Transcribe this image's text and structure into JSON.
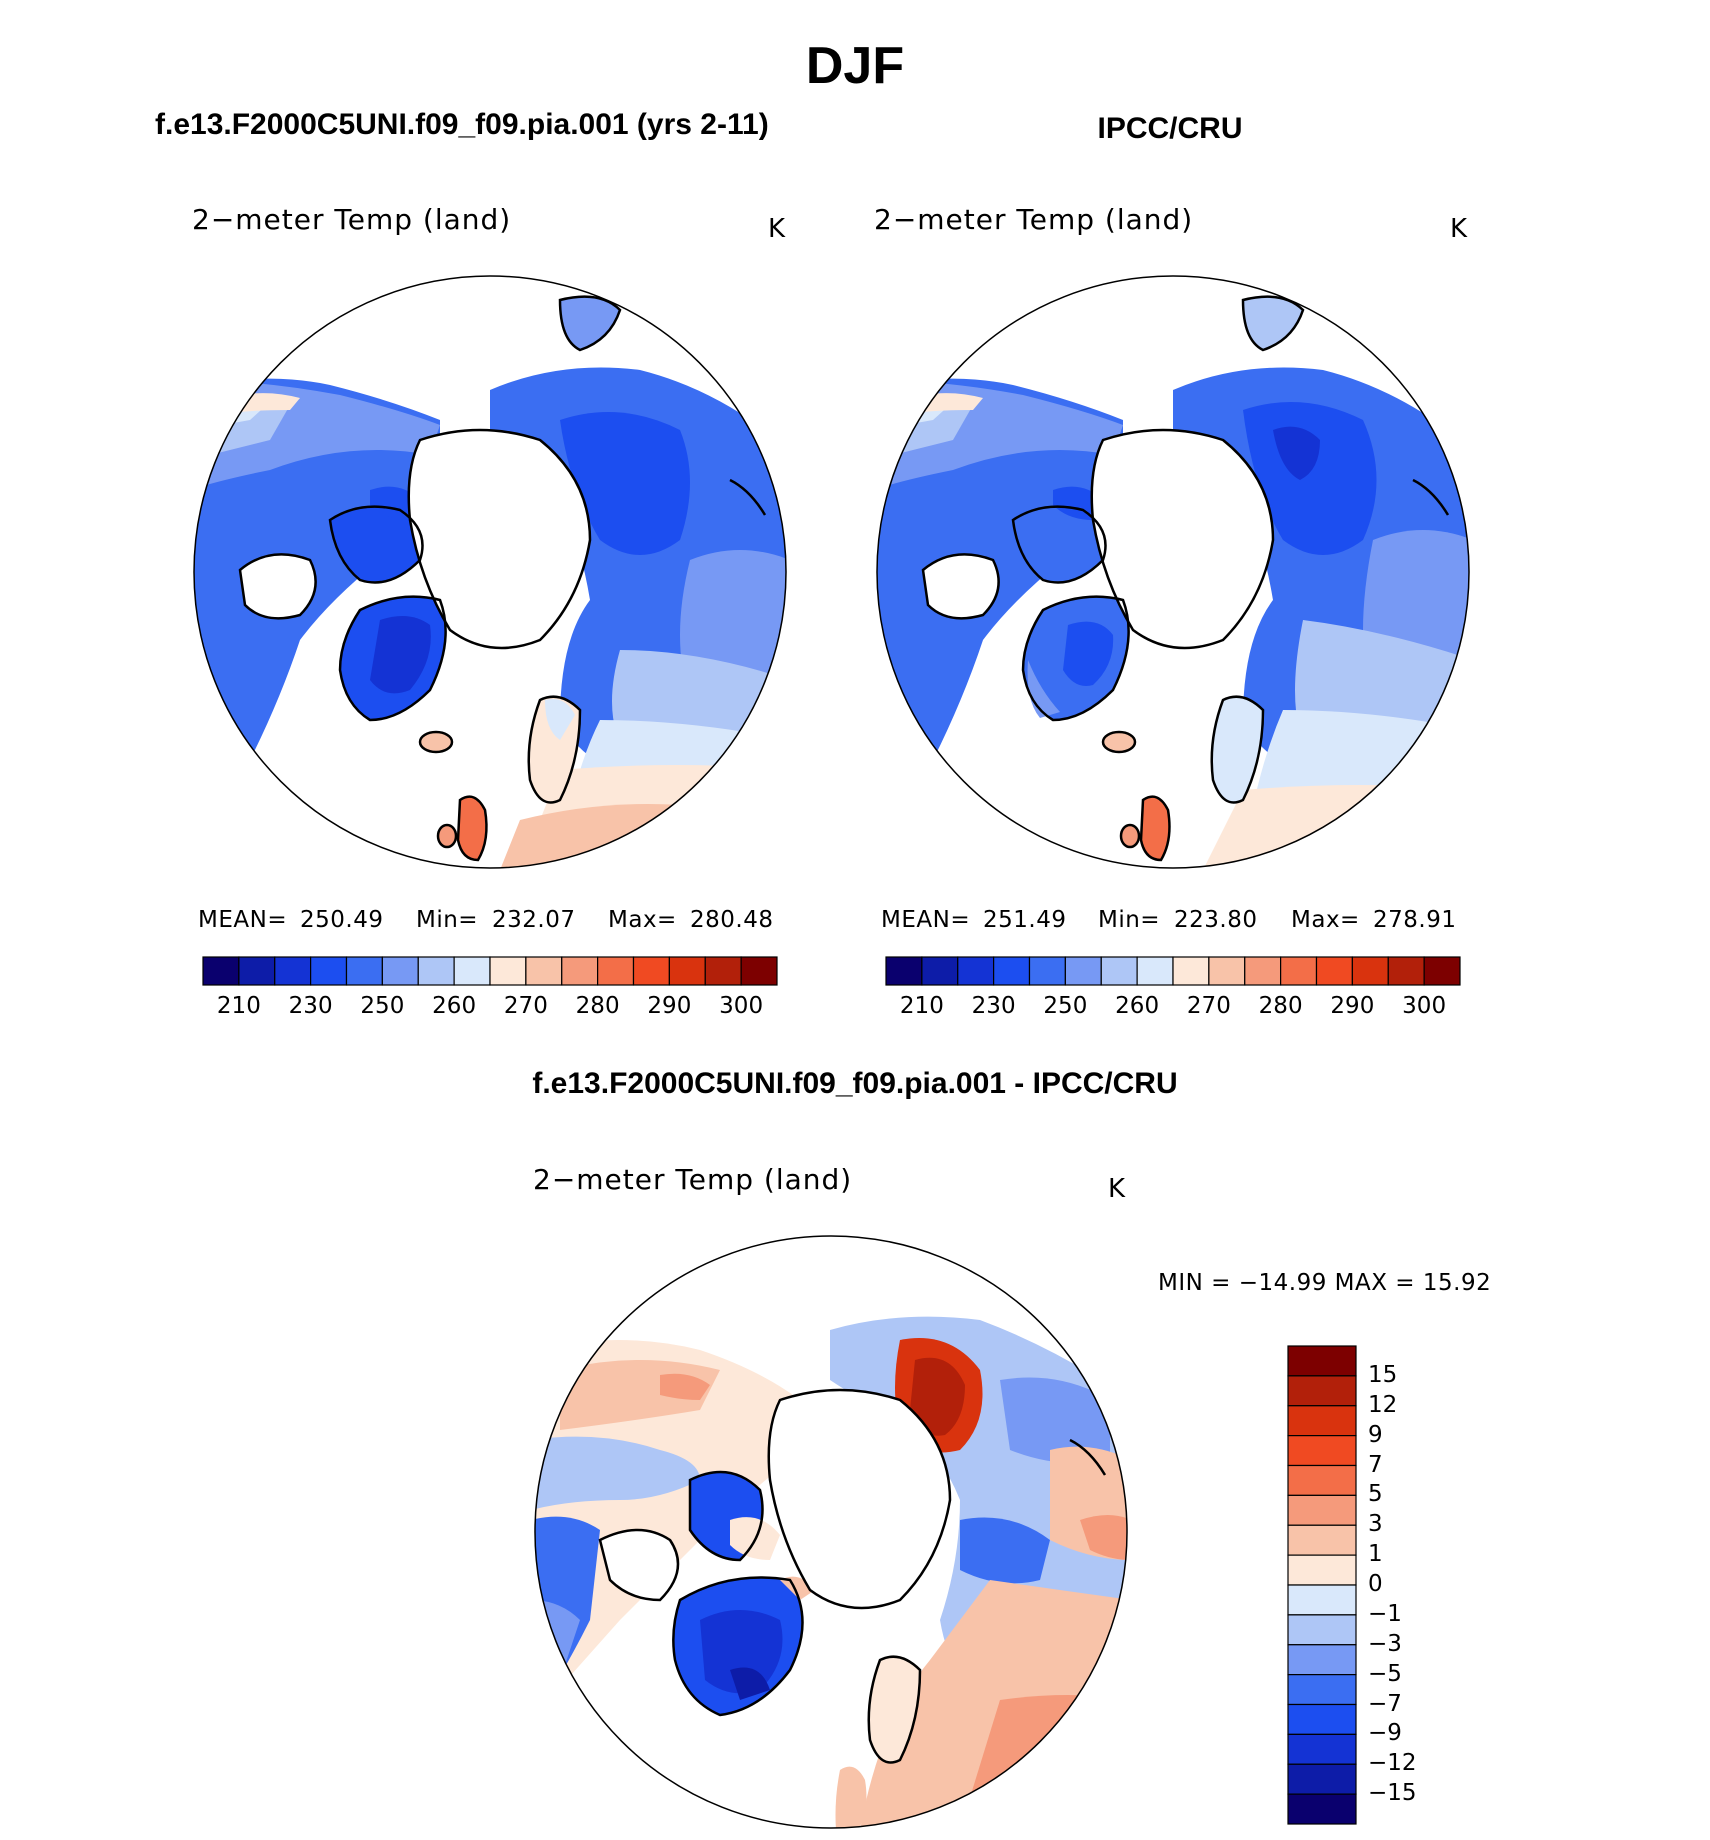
{
  "title": "DJF",
  "panels": [
    {
      "id": "model",
      "header": "f.e13.F2000C5UNI.f09_f09.pia.001 (yrs 2-11)",
      "variable": "2−meter Temp (land)",
      "units": "K",
      "stats": {
        "mean_label": "MEAN=",
        "mean": "250.49",
        "min_label": "Min=",
        "min": "232.07",
        "max_label": "Max=",
        "max": "280.48"
      }
    },
    {
      "id": "obs",
      "header": "IPCC/CRU",
      "variable": "2−meter Temp (land)",
      "units": "K",
      "stats": {
        "mean_label": "MEAN=",
        "mean": "251.49",
        "min_label": "Min=",
        "min": "223.80",
        "max_label": "Max=",
        "max": "278.91"
      }
    }
  ],
  "diff_panel": {
    "header": "f.e13.F2000C5UNI.f09_f09.pia.001 - IPCC/CRU",
    "variable": "2−meter Temp (land)",
    "units": "K",
    "stats_text": "MIN = −14.99 MAX =  15.92"
  },
  "colorbar_abs": {
    "colors": [
      "#0a006e",
      "#0d1ca8",
      "#1433d4",
      "#1c4ef0",
      "#3b6ef2",
      "#7799f4",
      "#aec6f6",
      "#d9e8fb",
      "#fde8d9",
      "#f8c3a9",
      "#f59a7b",
      "#f36e48",
      "#f04a22",
      "#d9330e",
      "#b2200a",
      "#7d0000"
    ],
    "tick_labels": [
      "210",
      "230",
      "250",
      "260",
      "270",
      "280",
      "290",
      "300"
    ]
  },
  "colorbar_diff": {
    "colors": [
      "#7d0000",
      "#b2200a",
      "#d9330e",
      "#f04a22",
      "#f36e48",
      "#f59a7b",
      "#f8c3a9",
      "#fde8d9",
      "#d9e8fb",
      "#aec6f6",
      "#7799f4",
      "#3b6ef2",
      "#1c4ef0",
      "#1433d4",
      "#0d1ca8",
      "#0a006e"
    ],
    "tick_labels": [
      "15",
      "12",
      "9",
      "7",
      "5",
      "3",
      "1",
      "0",
      "−1",
      "−3",
      "−5",
      "−7",
      "−9",
      "−12",
      "−15"
    ]
  },
  "colors": {
    "land_outline": "#000000",
    "ocean": "#ffffff"
  }
}
